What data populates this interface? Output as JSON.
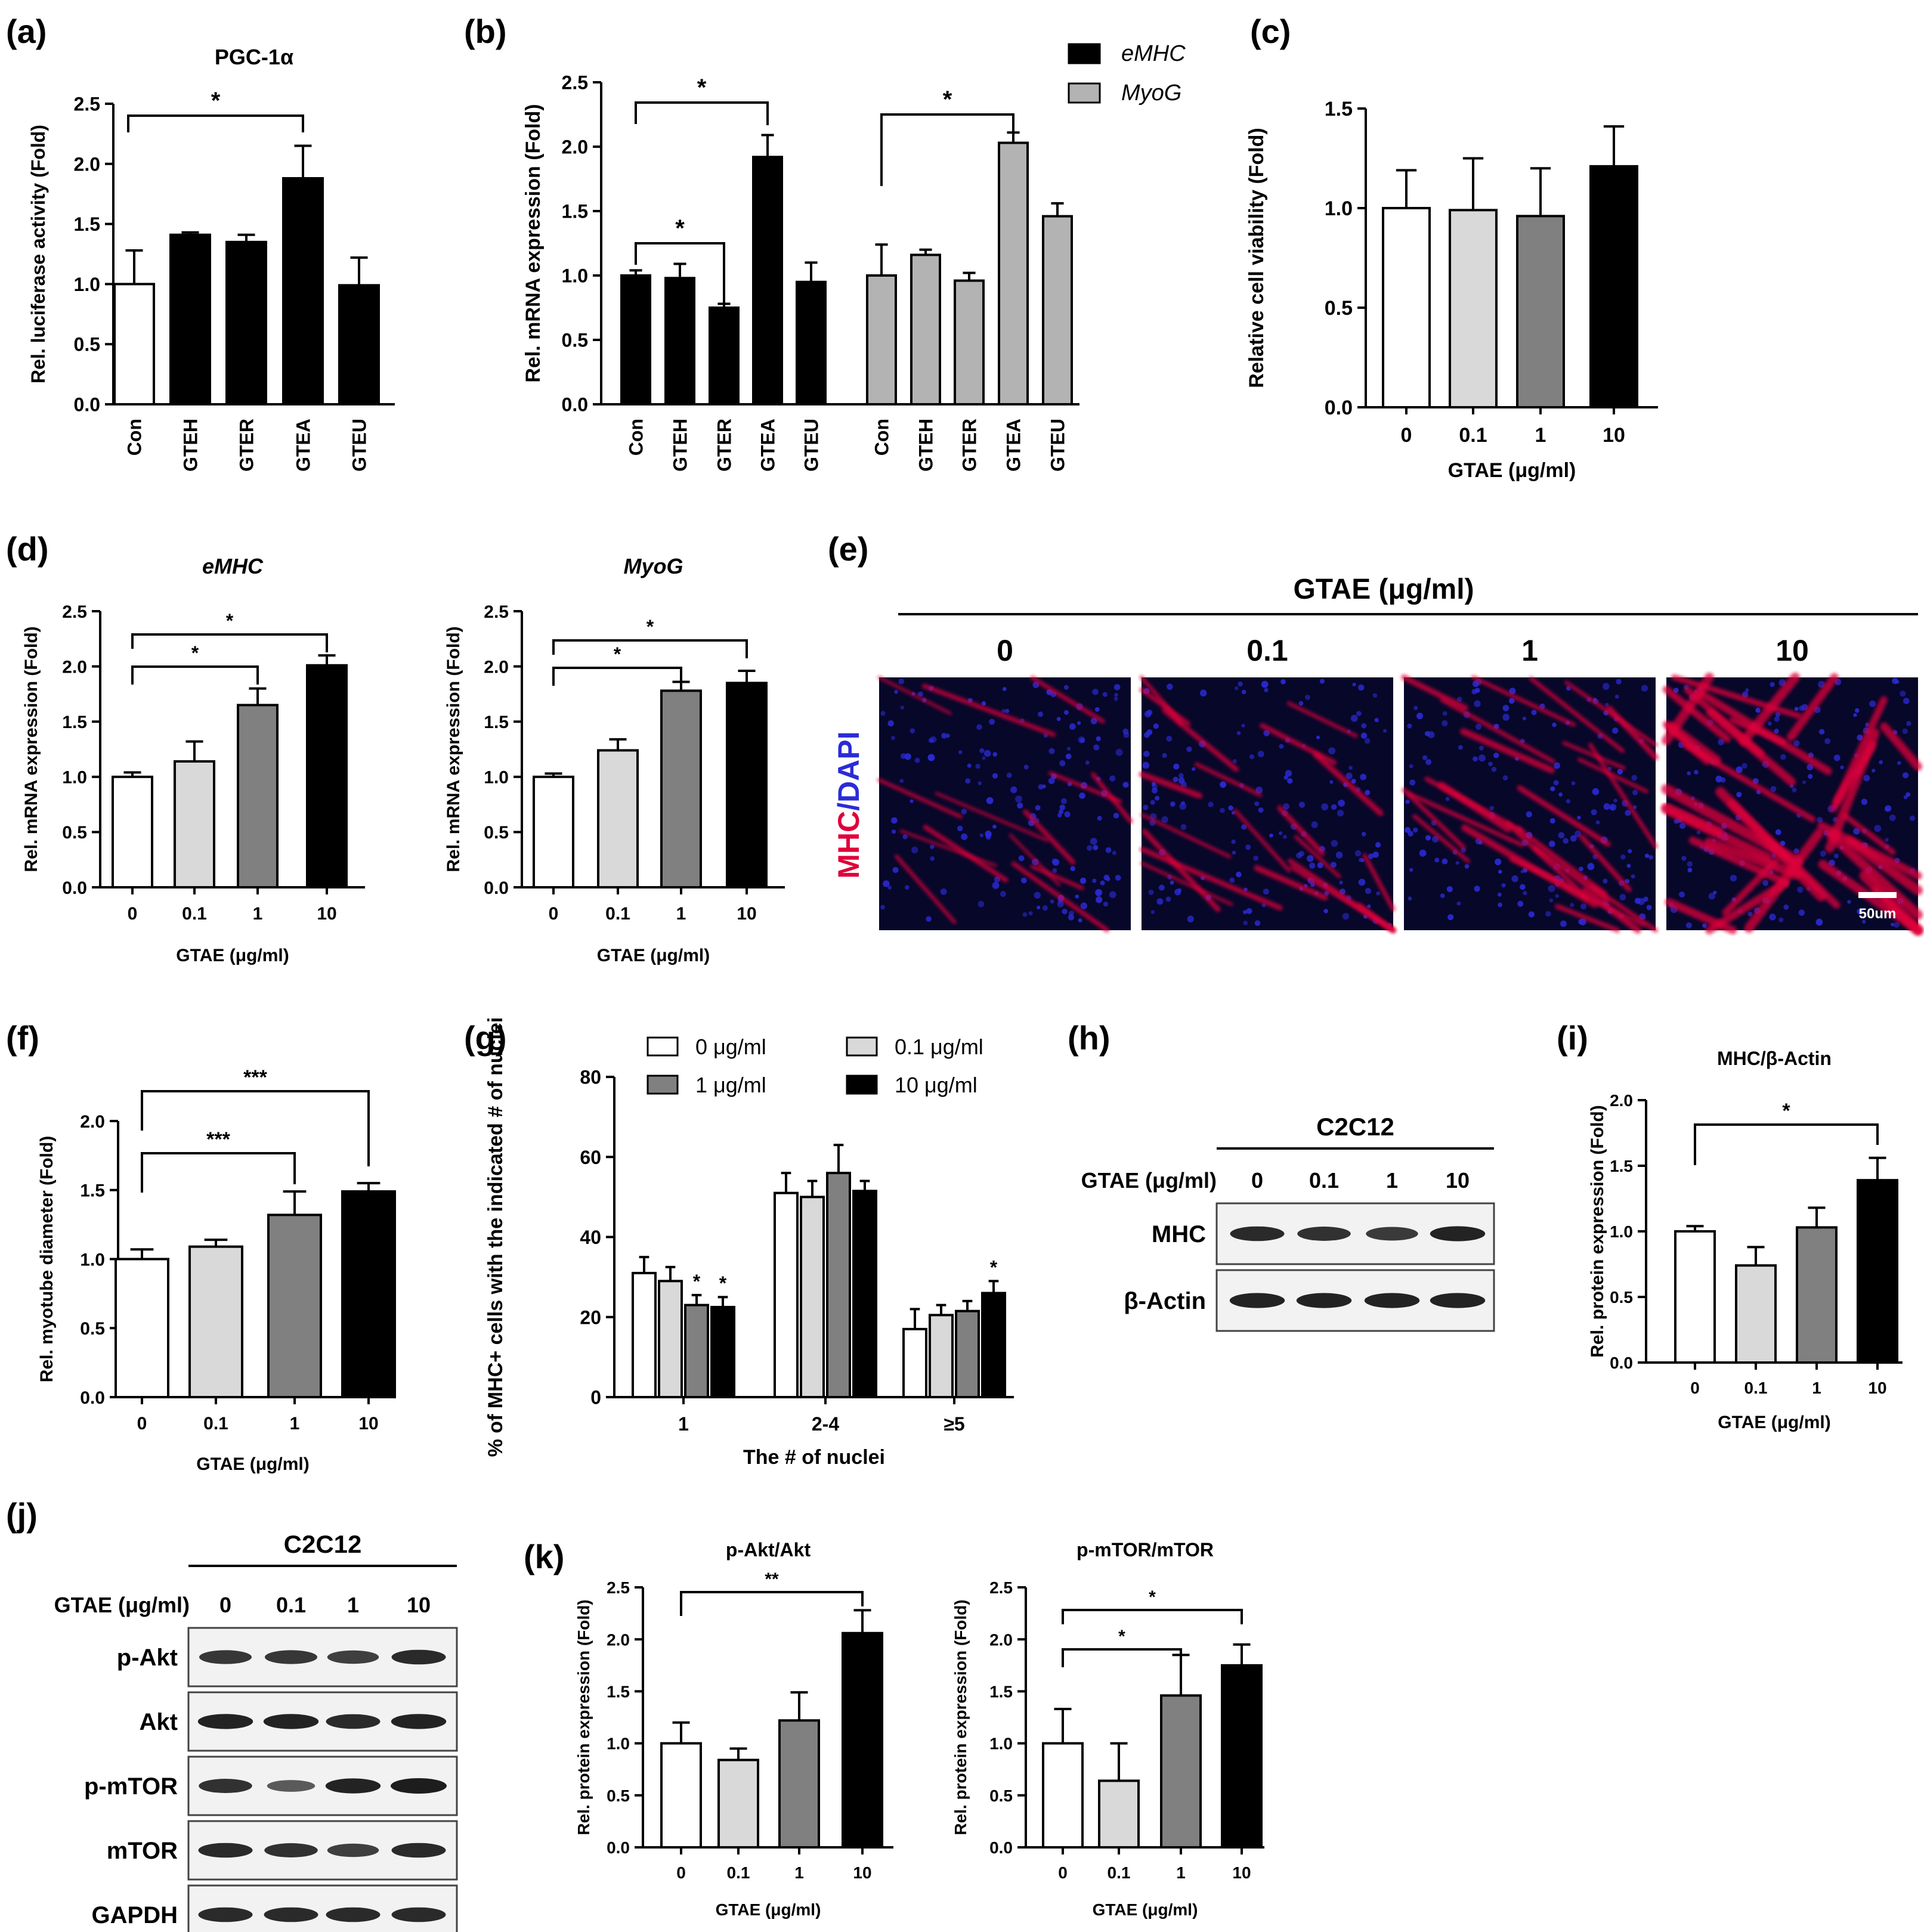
{
  "figure": {
    "axis_color": "#000000",
    "bar_colors": {
      "dose_0": "#ffffff",
      "dose_0_1": "#d9d9d9",
      "dose_1": "#808080",
      "dose_10": "#000000",
      "black": "#000000",
      "grey": "#b3b3b3"
    },
    "mhc_color": "#e0003a",
    "dapi_color": "#2b2bd8"
  },
  "chart_data": [
    {
      "panel": "(a)",
      "type": "bar",
      "title": "PGC-1α",
      "ylabel": "Rel. luciferase activity (Fold)",
      "xlabel": "",
      "ylim": [
        0,
        2.5
      ],
      "yticks": [
        "0.0",
        "0.5",
        "1.0",
        "1.5",
        "2.0",
        "2.5"
      ],
      "categories": [
        "Con",
        "GTEH",
        "GTER",
        "GTEA",
        "GTEU"
      ],
      "values": [
        1.0,
        1.41,
        1.35,
        1.88,
        0.99
      ],
      "errors": [
        0.28,
        0.02,
        0.06,
        0.27,
        0.23
      ],
      "colors": [
        "#ffffff",
        "#000000",
        "#000000",
        "#000000",
        "#000000"
      ],
      "significance": [
        {
          "from": "Con",
          "to": "GTEA",
          "label": "*"
        }
      ]
    },
    {
      "panel": "(b)",
      "type": "bar",
      "ylabel": "Rel. mRNA expression (Fold)",
      "xlabel": "",
      "ylim": [
        0,
        2.5
      ],
      "yticks": [
        "0.0",
        "0.5",
        "1.0",
        "1.5",
        "2.0",
        "2.5"
      ],
      "categories": [
        "Con",
        "GTEH",
        "GTER",
        "GTEA",
        "GTEU"
      ],
      "series": [
        {
          "name": "eMHC",
          "values": [
            1.0,
            0.98,
            0.75,
            1.92,
            0.95
          ],
          "errors": [
            0.04,
            0.11,
            0.03,
            0.17,
            0.15
          ],
          "color": "#000000"
        },
        {
          "name": "MyoG",
          "values": [
            1.0,
            1.16,
            0.96,
            2.03,
            1.46
          ],
          "errors": [
            0.24,
            0.04,
            0.06,
            0.08,
            0.1
          ],
          "color": "#b3b3b3"
        }
      ],
      "legend": "top-right",
      "significance": [
        {
          "series": "eMHC",
          "from": "Con",
          "to": "GTER",
          "label": "*"
        },
        {
          "series": "eMHC",
          "from": "Con",
          "to": "GTEA",
          "label": "*"
        },
        {
          "series": "MyoG",
          "from": "Con",
          "to": "GTEA",
          "label": "*"
        }
      ]
    },
    {
      "panel": "(c)",
      "type": "bar",
      "ylabel": "Relative cell viability (Fold)",
      "xlabel": "GTAE (μg/ml)",
      "ylim": [
        0,
        1.5
      ],
      "yticks": [
        "0.0",
        "0.5",
        "1.0",
        "1.5"
      ],
      "categories": [
        "0",
        "0.1",
        "1",
        "10"
      ],
      "values": [
        1.0,
        0.99,
        0.96,
        1.21
      ],
      "errors": [
        0.19,
        0.26,
        0.24,
        0.2
      ],
      "colors": [
        "#ffffff",
        "#d9d9d9",
        "#808080",
        "#000000"
      ]
    },
    {
      "panel": "(d)",
      "type": "bar",
      "title": "eMHC",
      "ylabel": "Rel. mRNA expression (Fold)",
      "xlabel": "GTAE (μg/ml)",
      "ylim": [
        0,
        2.5
      ],
      "yticks": [
        "0.0",
        "0.5",
        "1.0",
        "1.5",
        "2.0",
        "2.5"
      ],
      "categories": [
        "0",
        "0.1",
        "1",
        "10"
      ],
      "values": [
        1.0,
        1.14,
        1.65,
        2.01
      ],
      "errors": [
        0.04,
        0.18,
        0.15,
        0.09
      ],
      "colors": [
        "#ffffff",
        "#d9d9d9",
        "#808080",
        "#000000"
      ],
      "significance": [
        {
          "from": "0",
          "to": "1",
          "label": "*"
        },
        {
          "from": "0",
          "to": "10",
          "label": "*"
        }
      ]
    },
    {
      "panel": "(d)",
      "type": "bar",
      "title": "MyoG",
      "ylabel": "Rel. mRNA expression (Fold)",
      "xlabel": "GTAE (μg/ml)",
      "ylim": [
        0,
        2.5
      ],
      "yticks": [
        "0.0",
        "0.5",
        "1.0",
        "1.5",
        "2.0",
        "2.5"
      ],
      "categories": [
        "0",
        "0.1",
        "1",
        "10"
      ],
      "values": [
        1.0,
        1.24,
        1.78,
        1.85
      ],
      "errors": [
        0.03,
        0.1,
        0.08,
        0.11
      ],
      "colors": [
        "#ffffff",
        "#d9d9d9",
        "#808080",
        "#000000"
      ],
      "significance": [
        {
          "from": "0",
          "to": "1",
          "label": "*"
        },
        {
          "from": "0",
          "to": "10",
          "label": "*"
        }
      ]
    },
    {
      "panel": "(f)",
      "type": "bar",
      "ylabel": "Rel. myotube diameter (Fold)",
      "xlabel": "GTAE (μg/ml)",
      "ylim": [
        0,
        2.0
      ],
      "yticks": [
        "0.0",
        "0.5",
        "1.0",
        "1.5",
        "2.0"
      ],
      "categories": [
        "0",
        "0.1",
        "1",
        "10"
      ],
      "values": [
        1.0,
        1.09,
        1.32,
        1.49
      ],
      "errors": [
        0.07,
        0.05,
        0.17,
        0.06
      ],
      "colors": [
        "#ffffff",
        "#d9d9d9",
        "#808080",
        "#000000"
      ],
      "significance": [
        {
          "from": "0",
          "to": "1",
          "label": "***"
        },
        {
          "from": "0",
          "to": "10",
          "label": "***"
        }
      ]
    },
    {
      "panel": "(g)",
      "type": "bar",
      "ylabel": "% of MHC+ cells with the indicated # of nuclei",
      "xlabel": "The # of nuclei",
      "ylim": [
        0,
        80
      ],
      "yticks": [
        "0",
        "20",
        "40",
        "60",
        "80"
      ],
      "categories": [
        "1",
        "2-4",
        "≥5"
      ],
      "series": [
        {
          "name": "0 μg/ml",
          "values": [
            31,
            51,
            17
          ],
          "errors": [
            4,
            5,
            5
          ],
          "color": "#ffffff"
        },
        {
          "name": "0.1 μg/ml",
          "values": [
            29,
            50,
            20.5
          ],
          "errors": [
            3.5,
            4,
            2.5
          ],
          "color": "#d9d9d9"
        },
        {
          "name": "1 μg/ml",
          "values": [
            23,
            56,
            21.5
          ],
          "errors": [
            2.5,
            7,
            2.5
          ],
          "color": "#808080"
        },
        {
          "name": "10 μg/ml",
          "values": [
            22.5,
            51.5,
            26
          ],
          "errors": [
            2.5,
            2.5,
            3
          ],
          "color": "#000000"
        }
      ],
      "legend": "top",
      "stars": [
        [
          "",
          "",
          ""
        ],
        [
          "",
          "",
          ""
        ],
        [
          "*",
          "",
          ""
        ],
        [
          "*",
          "",
          "*"
        ]
      ]
    },
    {
      "panel": "(i)",
      "type": "bar",
      "title": "MHC/β-Actin",
      "ylabel": "Rel. protein expression (Fold)",
      "xlabel": "GTAE (μg/ml)",
      "ylim": [
        0,
        2.0
      ],
      "yticks": [
        "0.0",
        "0.5",
        "1.0",
        "1.5",
        "2.0"
      ],
      "categories": [
        "0",
        "0.1",
        "1",
        "10"
      ],
      "values": [
        1.0,
        0.74,
        1.03,
        1.39
      ],
      "errors": [
        0.04,
        0.14,
        0.15,
        0.17
      ],
      "colors": [
        "#ffffff",
        "#d9d9d9",
        "#808080",
        "#000000"
      ],
      "significance": [
        {
          "from": "0",
          "to": "10",
          "label": "*"
        }
      ]
    },
    {
      "panel": "(k)",
      "type": "bar",
      "title": "p-Akt/Akt",
      "ylabel": "Rel. protein expression (Fold)",
      "xlabel": "GTAE (μg/ml)",
      "ylim": [
        0,
        2.5
      ],
      "yticks": [
        "0.0",
        "0.5",
        "1.0",
        "1.5",
        "2.0",
        "2.5"
      ],
      "categories": [
        "0",
        "0.1",
        "1",
        "10"
      ],
      "values": [
        1.0,
        0.84,
        1.22,
        2.06
      ],
      "errors": [
        0.2,
        0.11,
        0.27,
        0.22
      ],
      "colors": [
        "#ffffff",
        "#d9d9d9",
        "#808080",
        "#000000"
      ],
      "significance": [
        {
          "from": "0",
          "to": "10",
          "label": "**"
        }
      ]
    },
    {
      "panel": "(k)",
      "type": "bar",
      "title": "p-mTOR/mTOR",
      "ylabel": "Rel. protein expression (Fold)",
      "xlabel": "GTAE (μg/ml)",
      "ylim": [
        0,
        2.5
      ],
      "yticks": [
        "0.0",
        "0.5",
        "1.0",
        "1.5",
        "2.0",
        "2.5"
      ],
      "categories": [
        "0",
        "0.1",
        "1",
        "10"
      ],
      "values": [
        1.0,
        0.64,
        1.46,
        1.75
      ],
      "errors": [
        0.33,
        0.36,
        0.39,
        0.2
      ],
      "colors": [
        "#ffffff",
        "#d9d9d9",
        "#808080",
        "#000000"
      ],
      "significance": [
        {
          "from": "0",
          "to": "1",
          "label": "*"
        },
        {
          "from": "0",
          "to": "10",
          "label": "*"
        }
      ]
    }
  ],
  "panel_e": {
    "label": "(e)",
    "header": "GTAE (μg/ml)",
    "doses": [
      "0",
      "0.1",
      "1",
      "10"
    ],
    "stain_mhc": "MHC",
    "stain_sep": "/",
    "stain_dapi": "DAPI",
    "scale_bar": "50um"
  },
  "panel_h": {
    "label": "(h)",
    "cell_line": "C2C12",
    "treatment_label": "GTAE (μg/ml)",
    "doses": [
      "0",
      "0.1",
      "1",
      "10"
    ],
    "bands": [
      {
        "name": "MHC",
        "intensity": [
          0.9,
          0.85,
          0.78,
          0.95
        ]
      },
      {
        "name": "β-Actin",
        "intensity": [
          0.95,
          0.95,
          0.95,
          0.95
        ]
      }
    ]
  },
  "panel_j": {
    "label": "(j)",
    "cell_line": "C2C12",
    "treatment_label": "GTAE (μg/ml)",
    "doses": [
      "0",
      "0.1",
      "1",
      "10"
    ],
    "bands": [
      {
        "name": "p-Akt",
        "intensity": [
          0.8,
          0.8,
          0.75,
          0.9
        ]
      },
      {
        "name": "Akt",
        "intensity": [
          0.95,
          0.95,
          0.9,
          0.95
        ]
      },
      {
        "name": "p-mTOR",
        "intensity": [
          0.85,
          0.55,
          0.95,
          1.0
        ]
      },
      {
        "name": "mTOR",
        "intensity": [
          0.9,
          0.85,
          0.75,
          0.9
        ]
      },
      {
        "name": "GAPDH",
        "intensity": [
          0.9,
          0.9,
          0.9,
          0.9
        ]
      }
    ]
  },
  "panel_labels": {
    "a": "(a)",
    "b": "(b)",
    "c": "(c)",
    "d": "(d)",
    "f": "(f)",
    "g": "(g)",
    "i": "(i)",
    "k": "(k)"
  }
}
